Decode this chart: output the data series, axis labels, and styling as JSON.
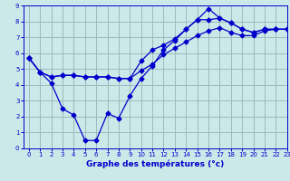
{
  "title": "",
  "xlabel": "Graphe des températures (°c)",
  "ylabel": "",
  "xlim": [
    -0.5,
    23
  ],
  "ylim": [
    0,
    9
  ],
  "xticks": [
    0,
    1,
    2,
    3,
    4,
    5,
    6,
    7,
    8,
    9,
    10,
    11,
    12,
    13,
    14,
    15,
    16,
    17,
    18,
    19,
    20,
    21,
    22,
    23
  ],
  "yticks": [
    0,
    1,
    2,
    3,
    4,
    5,
    6,
    7,
    8,
    9
  ],
  "background_color": "#cce8e8",
  "grid_color": "#9abcbc",
  "line_color": "#0000cc",
  "line1_x": [
    0,
    1,
    2,
    3,
    4,
    5,
    6,
    7,
    8,
    9,
    10,
    11,
    12,
    13,
    14,
    15,
    16,
    17,
    18,
    19,
    20,
    21,
    22,
    23
  ],
  "line1_y": [
    5.7,
    4.8,
    4.1,
    2.5,
    2.1,
    0.5,
    0.5,
    2.2,
    1.9,
    3.3,
    4.4,
    5.2,
    6.2,
    6.8,
    7.5,
    8.1,
    8.8,
    8.2,
    7.9,
    7.5,
    7.3,
    7.5,
    7.5,
    7.5
  ],
  "line2_x": [
    0,
    1,
    2,
    3,
    4,
    5,
    6,
    7,
    8,
    9,
    10,
    11,
    12,
    13,
    14,
    15,
    16,
    17,
    18,
    19,
    20,
    21,
    22,
    23
  ],
  "line2_y": [
    5.7,
    4.8,
    4.5,
    4.6,
    4.6,
    4.5,
    4.5,
    4.5,
    4.4,
    4.4,
    5.5,
    6.2,
    6.5,
    6.9,
    7.5,
    8.1,
    8.1,
    8.2,
    7.9,
    7.5,
    7.3,
    7.5,
    7.5,
    7.5
  ],
  "line3_x": [
    0,
    1,
    2,
    3,
    4,
    5,
    6,
    7,
    8,
    9,
    10,
    11,
    12,
    13,
    14,
    15,
    16,
    17,
    18,
    19,
    20,
    21,
    22,
    23
  ],
  "line3_y": [
    5.7,
    4.8,
    4.5,
    4.6,
    4.6,
    4.5,
    4.5,
    4.5,
    4.4,
    4.4,
    4.9,
    5.3,
    5.9,
    6.3,
    6.7,
    7.1,
    7.4,
    7.6,
    7.3,
    7.1,
    7.1,
    7.4,
    7.5,
    7.5
  ]
}
